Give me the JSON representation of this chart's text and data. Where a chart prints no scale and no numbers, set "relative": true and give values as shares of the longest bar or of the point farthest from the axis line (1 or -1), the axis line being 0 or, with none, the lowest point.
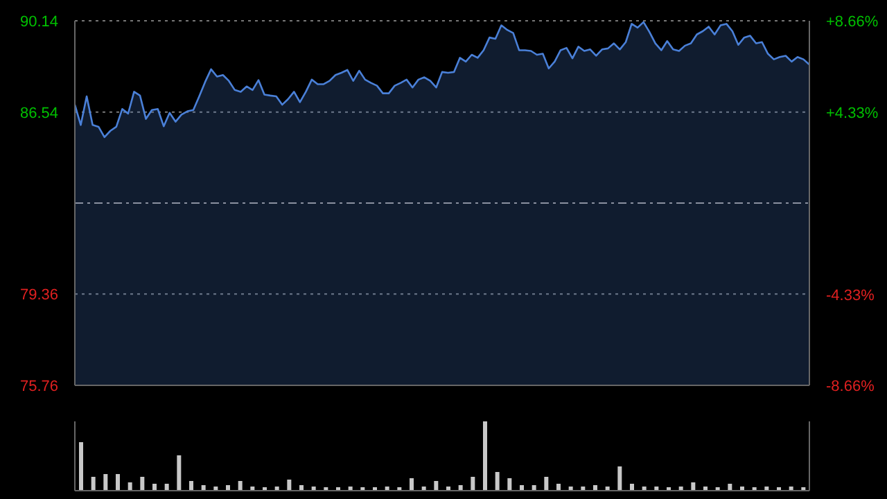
{
  "chart_data": [
    {
      "type": "area",
      "categories": [
        null,
        null,
        null,
        null,
        null,
        null,
        null,
        null,
        null,
        null,
        null,
        null,
        null,
        null,
        null,
        null,
        null,
        null,
        null,
        null,
        null,
        null,
        null,
        null,
        null,
        null,
        null,
        null,
        null,
        null,
        null,
        null,
        null,
        null,
        null,
        null,
        null,
        null,
        null,
        null,
        null,
        null,
        null,
        null,
        null,
        null,
        null,
        null,
        null,
        null,
        null,
        null,
        null,
        null,
        null,
        null,
        null,
        null,
        null,
        null,
        null,
        null,
        null,
        null,
        null,
        null,
        null,
        null,
        null,
        null,
        null,
        null,
        null,
        null,
        null,
        null,
        null,
        null,
        null,
        null,
        null,
        null,
        null,
        null,
        null,
        null,
        null,
        null,
        null,
        null,
        null,
        null,
        null,
        null,
        null,
        null,
        null,
        null,
        null,
        null,
        null,
        null,
        null,
        null,
        null,
        null,
        null,
        null,
        null,
        null,
        null,
        null,
        null,
        null,
        null,
        null,
        null,
        null,
        null,
        null,
        null,
        null,
        null,
        null,
        null
      ],
      "series": [
        {
          "color": "#4a80d8",
          "values": [
            86.83,
            86.03,
            87.16,
            86.03,
            85.96,
            85.55,
            85.8,
            85.96,
            86.66,
            86.48,
            87.34,
            87.19,
            86.27,
            86.62,
            86.66,
            85.98,
            86.51,
            86.16,
            86.44,
            86.57,
            86.62,
            87.16,
            87.73,
            88.23,
            87.94,
            88.0,
            87.77,
            87.41,
            87.34,
            87.55,
            87.41,
            87.8,
            87.23,
            87.19,
            87.16,
            86.83,
            87.05,
            87.34,
            86.93,
            87.34,
            87.82,
            87.64,
            87.64,
            87.77,
            88.0,
            88.09,
            88.2,
            87.77,
            88.17,
            87.82,
            87.69,
            87.58,
            87.28,
            87.28,
            87.58,
            87.69,
            87.82,
            87.51,
            87.82,
            87.91,
            87.77,
            87.51,
            88.12,
            88.09,
            88.12,
            88.68,
            88.53,
            88.8,
            88.68,
            88.98,
            89.48,
            89.43,
            89.96,
            89.78,
            89.66,
            88.98,
            88.98,
            88.95,
            88.8,
            88.84,
            88.26,
            88.53,
            88.98,
            89.07,
            88.66,
            89.12,
            88.95,
            89.01,
            88.76,
            89.01,
            89.05,
            89.25,
            89.01,
            89.3,
            90.02,
            89.87,
            90.09,
            89.7,
            89.25,
            88.98,
            89.34,
            89.01,
            88.95,
            89.16,
            89.25,
            89.6,
            89.73,
            89.91,
            89.6,
            89.96,
            90.02,
            89.73,
            89.19,
            89.48,
            89.55,
            89.25,
            89.3,
            88.84,
            88.62,
            88.71,
            88.76,
            88.53,
            88.71,
            88.62,
            88.41
          ]
        }
      ],
      "ylim": [
        75.76,
        90.14
      ],
      "yticks": [
        75.76,
        79.36,
        86.54,
        90.14
      ],
      "y2lim": [
        -8.66,
        8.66
      ],
      "y2ticks": [
        {
          "value": -8.66,
          "label": "-8.66%"
        },
        {
          "value": -4.33,
          "label": "-4.33%"
        },
        {
          "value": 4.33,
          "label": "+4.33%"
        },
        {
          "value": 8.66,
          "label": "+8.66%"
        }
      ],
      "ref_lines": [
        {
          "axis": "y",
          "value": 82.95,
          "color": "#8a90a0",
          "line_style": "dashed"
        }
      ],
      "grid": "y"
    },
    {
      "type": "bar",
      "relative": true,
      "categories": [
        null,
        null,
        null,
        null,
        null,
        null,
        null,
        null,
        null,
        null,
        null,
        null,
        null,
        null,
        null,
        null,
        null,
        null,
        null,
        null,
        null,
        null,
        null,
        null,
        null,
        null,
        null,
        null,
        null,
        null,
        null,
        null,
        null,
        null,
        null,
        null,
        null,
        null,
        null,
        null,
        null,
        null,
        null,
        null,
        null,
        null,
        null,
        null,
        null,
        null,
        null,
        null,
        null,
        null,
        null,
        null,
        null,
        null,
        null,
        null
      ],
      "series": [
        {
          "color": "#c8c8c8",
          "values": [
            0.7,
            0.2,
            0.24,
            0.24,
            0.12,
            0.2,
            0.1,
            0.1,
            0.51,
            0.14,
            0.08,
            0.06,
            0.08,
            0.14,
            0.06,
            0.05,
            0.06,
            0.16,
            0.08,
            0.06,
            0.05,
            0.05,
            0.06,
            0.05,
            0.05,
            0.06,
            0.05,
            0.18,
            0.06,
            0.14,
            0.06,
            0.08,
            0.2,
            1,
            0.27,
            0.18,
            0.08,
            0.08,
            0.2,
            0.1,
            0.06,
            0.06,
            0.08,
            0.06,
            0.35,
            0.1,
            0.06,
            0.06,
            0.05,
            0.06,
            0.12,
            0.06,
            0.05,
            0.1,
            0.06,
            0.05,
            0.06,
            0.05,
            0.06,
            0.05
          ]
        }
      ]
    }
  ]
}
